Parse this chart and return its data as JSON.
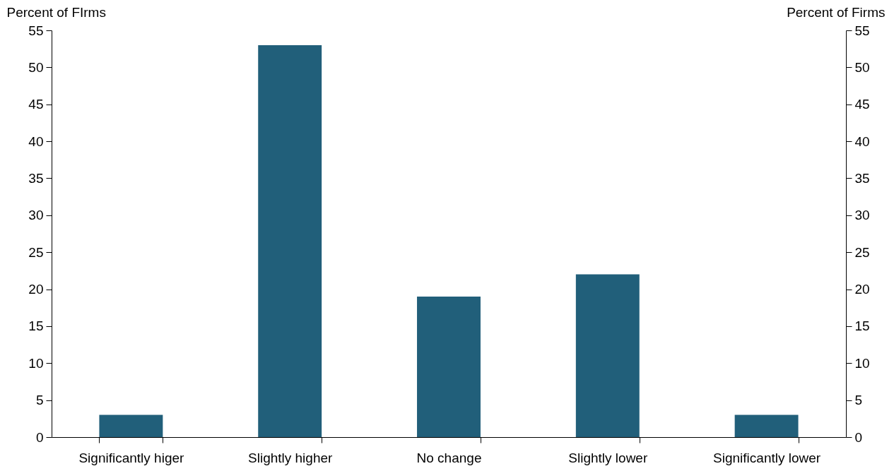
{
  "chart_data": {
    "type": "bar",
    "ylabel": "Percent of FIrms",
    "y2label": "Percent of Firms",
    "categories": [
      "Significantly higer",
      "Slightly higher",
      "No change",
      "Slightly lower",
      "Significantly lower"
    ],
    "values": [
      3,
      53,
      19,
      22,
      3
    ],
    "color": "#215f7a",
    "ylim": [
      0,
      55
    ],
    "yticks": [
      0,
      5,
      10,
      15,
      20,
      25,
      30,
      35,
      40,
      45,
      50,
      55
    ],
    "y2lim": [
      0,
      55
    ],
    "y2ticks": [
      0,
      5,
      10,
      15,
      20,
      25,
      30,
      35,
      40,
      45,
      50,
      55
    ],
    "grid": false
  }
}
